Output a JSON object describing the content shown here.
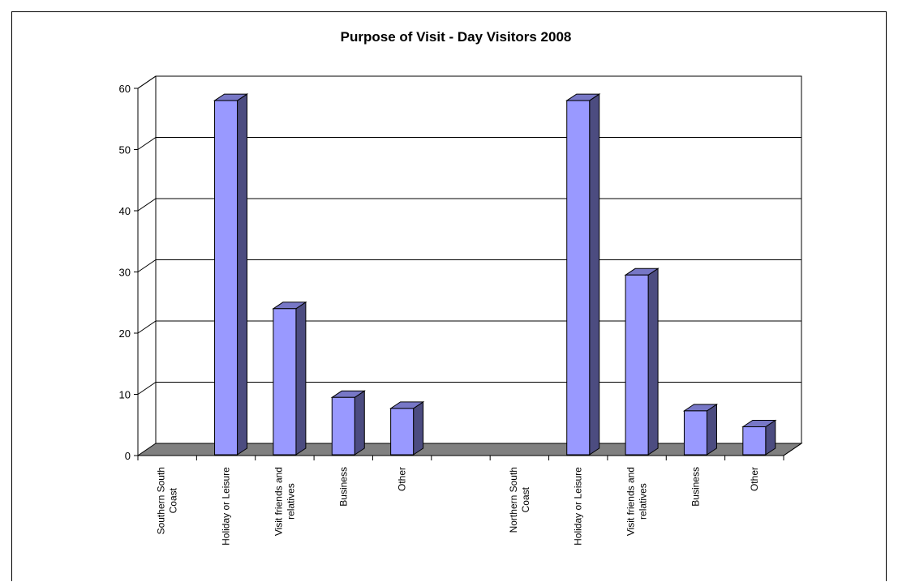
{
  "chart_data": {
    "type": "bar",
    "style": "3d-column",
    "title": "Purpose of Visit - Day Visitors 2008",
    "xlabel": "",
    "ylabel": "",
    "ylim": [
      0,
      60
    ],
    "yticks": [
      0,
      10,
      20,
      30,
      40,
      50,
      60
    ],
    "grid": true,
    "legend": "none",
    "categories": [
      "Southern South Coast",
      "Holiday or Leisure",
      "Visit friends and relatives",
      "Business",
      "Other",
      "",
      "Northern South Coast",
      "Holiday or Leisure",
      "Visit friends and relatives",
      "Business",
      "Other"
    ],
    "category_label_lines": [
      [
        "Southern South",
        "Coast"
      ],
      [
        "Holiday or Leisure"
      ],
      [
        "Visit friends and",
        "relatives"
      ],
      [
        "Business"
      ],
      [
        "Other"
      ],
      [],
      [
        "Northern South",
        "Coast"
      ],
      [
        "Holiday or Leisure"
      ],
      [
        "Visit friends and",
        "relatives"
      ],
      [
        "Business"
      ],
      [
        "Other"
      ]
    ],
    "values": [
      null,
      58,
      24,
      9.5,
      7.7,
      null,
      null,
      58,
      29.5,
      7.3,
      4.7
    ],
    "colors": {
      "bar_front": "#9999ff",
      "bar_side": "#4c4c80",
      "bar_top": "#7777c6",
      "floor": "#808080",
      "grid": "#000000"
    }
  }
}
